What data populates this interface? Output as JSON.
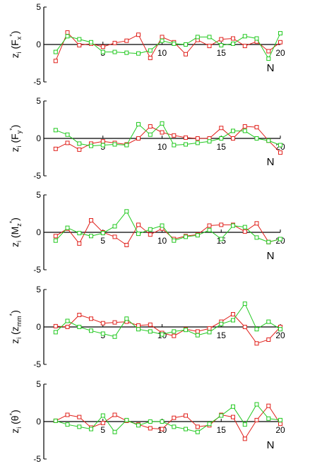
{
  "colors": {
    "series_red": "#e0201b",
    "series_green": "#21c91f",
    "axis": "#000000"
  },
  "chart_data": [
    {
      "type": "line",
      "ylabel": {
        "base": "z",
        "sub": "i",
        "paren_symbol": "F",
        "paren_sub": "x",
        "paren_sup": "*"
      },
      "xlabel": "N",
      "xlim": [
        0,
        20
      ],
      "ylim": [
        -5,
        5
      ],
      "xticks": [
        "5",
        "10",
        "15",
        "20"
      ],
      "yticks": [
        "5",
        "0",
        "-5"
      ],
      "x": [
        1,
        2,
        3,
        4,
        5,
        6,
        7,
        8,
        9,
        10,
        11,
        12,
        13,
        14,
        15,
        16,
        17,
        18,
        19,
        20
      ],
      "series": [
        {
          "color": "#e0201b",
          "values": [
            -2.2,
            1.6,
            -0.1,
            0.1,
            -0.3,
            0.2,
            0.5,
            1.3,
            -1.8,
            1.0,
            0.3,
            -1.3,
            0.6,
            -0.2,
            0.7,
            0.8,
            -0.2,
            0.4,
            -0.9,
            0.3
          ]
        },
        {
          "color": "#21c91f",
          "values": [
            -1.0,
            1.1,
            0.7,
            0.3,
            -1.0,
            -1.0,
            -1.1,
            -1.2,
            -0.8,
            0.5,
            0.1,
            0.0,
            1.0,
            1.0,
            -0.1,
            0.1,
            1.1,
            0.8,
            -1.9,
            1.5
          ]
        }
      ]
    },
    {
      "type": "line",
      "ylabel": {
        "base": "z",
        "sub": "i",
        "paren_symbol": "F",
        "paren_sub": "y",
        "paren_sup": "*"
      },
      "xlabel": "N",
      "xlim": [
        0,
        20
      ],
      "ylim": [
        -5,
        5
      ],
      "xticks": [
        "5",
        "10",
        "15",
        "20"
      ],
      "yticks": [
        "5",
        "0",
        "-5"
      ],
      "x": [
        1,
        2,
        3,
        4,
        5,
        6,
        7,
        8,
        9,
        10,
        11,
        12,
        13,
        14,
        15,
        16,
        17,
        18,
        19,
        20
      ],
      "series": [
        {
          "color": "#e0201b",
          "values": [
            -1.4,
            -0.6,
            -1.5,
            -0.7,
            -0.4,
            -0.6,
            -0.8,
            0.0,
            1.6,
            0.8,
            0.4,
            0.1,
            0.0,
            0.0,
            1.4,
            0.0,
            1.6,
            1.5,
            -0.3,
            -1.9
          ]
        },
        {
          "color": "#21c91f",
          "values": [
            1.1,
            0.5,
            -0.7,
            -1.0,
            -0.9,
            -0.8,
            -0.9,
            1.9,
            0.5,
            2.0,
            -0.9,
            -0.8,
            -0.6,
            -0.4,
            0.0,
            1.0,
            1.0,
            0.0,
            -0.3,
            -0.9
          ]
        }
      ]
    },
    {
      "type": "line",
      "ylabel": {
        "base": "z",
        "sub": "i",
        "paren_symbol": "M",
        "paren_sub": "z",
        "paren_sup": "*"
      },
      "xlabel": "N",
      "xlim": [
        0,
        20
      ],
      "ylim": [
        -5,
        5
      ],
      "xticks": [
        "5",
        "10",
        "15",
        "20"
      ],
      "yticks": [
        "5",
        "0",
        "-5"
      ],
      "x": [
        1,
        2,
        3,
        4,
        5,
        6,
        7,
        8,
        9,
        10,
        11,
        12,
        13,
        14,
        15,
        16,
        17,
        18,
        19,
        20
      ],
      "series": [
        {
          "color": "#e0201b",
          "values": [
            -0.5,
            0.5,
            -1.5,
            1.6,
            0.0,
            -0.6,
            -1.7,
            1.0,
            -0.3,
            0.5,
            -0.9,
            -0.5,
            -0.3,
            0.9,
            1.0,
            1.0,
            0.1,
            1.2,
            -1.3,
            -0.9
          ]
        },
        {
          "color": "#21c91f",
          "values": [
            -1.1,
            0.6,
            -0.1,
            -0.5,
            -0.1,
            0.8,
            2.8,
            -0.2,
            0.4,
            0.9,
            -1.1,
            -0.6,
            -0.4,
            0.3,
            -0.9,
            0.9,
            0.7,
            -0.7,
            -1.3,
            -0.9
          ]
        }
      ]
    },
    {
      "type": "line",
      "ylabel": {
        "base": "z",
        "sub": "i",
        "paren_symbol": "z",
        "paren_sub": "mm",
        "paren_sup": "*"
      },
      "xlabel": "",
      "xlim": [
        0,
        20
      ],
      "ylim": [
        -5,
        5
      ],
      "xticks": [
        "5",
        "10",
        "15",
        "20"
      ],
      "yticks": [
        "5",
        "0",
        "-5"
      ],
      "x": [
        1,
        2,
        3,
        4,
        5,
        6,
        7,
        8,
        9,
        10,
        11,
        12,
        13,
        14,
        15,
        16,
        17,
        18,
        19,
        20
      ],
      "series": [
        {
          "color": "#e0201b",
          "values": [
            0.1,
            0.0,
            1.6,
            1.1,
            0.5,
            0.6,
            0.7,
            0.2,
            0.3,
            -0.8,
            -1.2,
            -0.3,
            -0.6,
            -0.2,
            0.7,
            1.7,
            0.0,
            -2.2,
            -1.7,
            0.0
          ]
        },
        {
          "color": "#21c91f",
          "values": [
            -0.7,
            0.8,
            0.0,
            -0.5,
            -0.9,
            -1.3,
            1.1,
            -0.3,
            -0.6,
            -1.0,
            -0.6,
            -0.4,
            -1.1,
            -0.7,
            0.4,
            0.9,
            3.1,
            -0.3,
            0.7,
            -0.3
          ]
        }
      ]
    },
    {
      "type": "line",
      "ylabel": {
        "base": "z",
        "sub": "i",
        "paren_symbol": "θ",
        "paren_sub": "",
        "paren_sup": "*"
      },
      "xlabel": "N",
      "xlim": [
        0,
        20
      ],
      "ylim": [
        -5,
        5
      ],
      "xticks": [
        "5",
        "10",
        "15",
        "20"
      ],
      "yticks": [
        "5",
        "0",
        "-5"
      ],
      "x": [
        1,
        2,
        3,
        4,
        5,
        6,
        7,
        8,
        9,
        10,
        11,
        12,
        13,
        14,
        15,
        16,
        17,
        18,
        19,
        20
      ],
      "series": [
        {
          "color": "#e0201b",
          "values": [
            0.1,
            0.9,
            0.6,
            -0.8,
            -0.2,
            0.9,
            0.1,
            -0.4,
            -0.9,
            -1.0,
            0.5,
            0.8,
            -0.7,
            -0.5,
            0.9,
            0.6,
            -2.3,
            0.2,
            2.1,
            -0.3
          ]
        },
        {
          "color": "#21c91f",
          "values": [
            0.1,
            -0.4,
            -0.7,
            -1.0,
            0.8,
            -1.4,
            0.2,
            -0.5,
            0.0,
            0.0,
            -0.7,
            -1.0,
            -1.4,
            -0.3,
            0.8,
            2.0,
            -0.4,
            2.3,
            0.4,
            0.2
          ]
        }
      ]
    }
  ]
}
